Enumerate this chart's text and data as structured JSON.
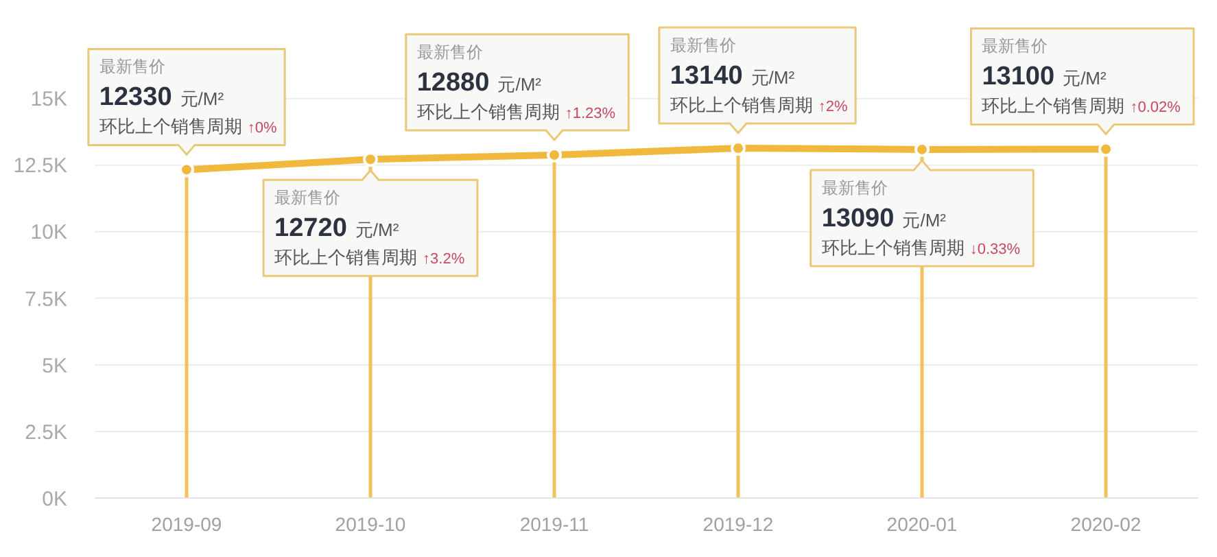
{
  "chart_data": {
    "type": "line",
    "categories": [
      "2019-09",
      "2019-10",
      "2019-11",
      "2019-12",
      "2020-01",
      "2020-02"
    ],
    "series": [
      {
        "color": "#f0b83c",
        "values": [
          12330,
          12720,
          12880,
          13140,
          13090,
          13100
        ]
      }
    ],
    "ylim": [
      0,
      18600
    ],
    "yticks": [
      {
        "value": 0,
        "label": "0K"
      },
      {
        "value": 2500,
        "label": "2.5K"
      },
      {
        "value": 5000,
        "label": "5K"
      },
      {
        "value": 7500,
        "label": "7.5K"
      },
      {
        "value": 10000,
        "label": "10K"
      },
      {
        "value": 12500,
        "label": "12.5K"
      },
      {
        "value": 15000,
        "label": "15K"
      }
    ],
    "grid": "y",
    "marker": "circle",
    "line_style": "solid",
    "ref_lines": [
      {
        "axis": "x",
        "value": "2019-09",
        "color": "#f2c25a"
      },
      {
        "axis": "x",
        "value": "2019-10",
        "color": "#f2c25a"
      },
      {
        "axis": "x",
        "value": "2019-11",
        "color": "#f2c25a"
      },
      {
        "axis": "x",
        "value": "2019-12",
        "color": "#f2c25a"
      },
      {
        "axis": "x",
        "value": "2020-01",
        "color": "#f2c25a"
      },
      {
        "axis": "x",
        "value": "2020-02",
        "color": "#f2c25a"
      }
    ],
    "annotations": [
      {
        "text": "最新售价\n12330 元/M²\n环比上个销售周期 ↑0%",
        "x": "2019-09",
        "y": 12330
      },
      {
        "text": "最新售价\n12720 元/M²\n环比上个销售周期 ↑3.2%",
        "x": "2019-10",
        "y": 12720
      },
      {
        "text": "最新售价\n12880 元/M²\n环比上个销售周期 ↑1.23%",
        "x": "2019-11",
        "y": 12880
      },
      {
        "text": "最新售价\n13140 元/M²\n环比上个销售周期 ↑2%",
        "x": "2019-12",
        "y": 13140
      },
      {
        "text": "最新售价\n13090 元/M²\n环比上个销售周期 ↓0.33%",
        "x": "2020-01",
        "y": 13090
      },
      {
        "text": "最新售价\n13100 元/M²\n环比上个销售周期 ↑0.02%",
        "x": "2020-02",
        "y": 13100
      }
    ]
  }
}
